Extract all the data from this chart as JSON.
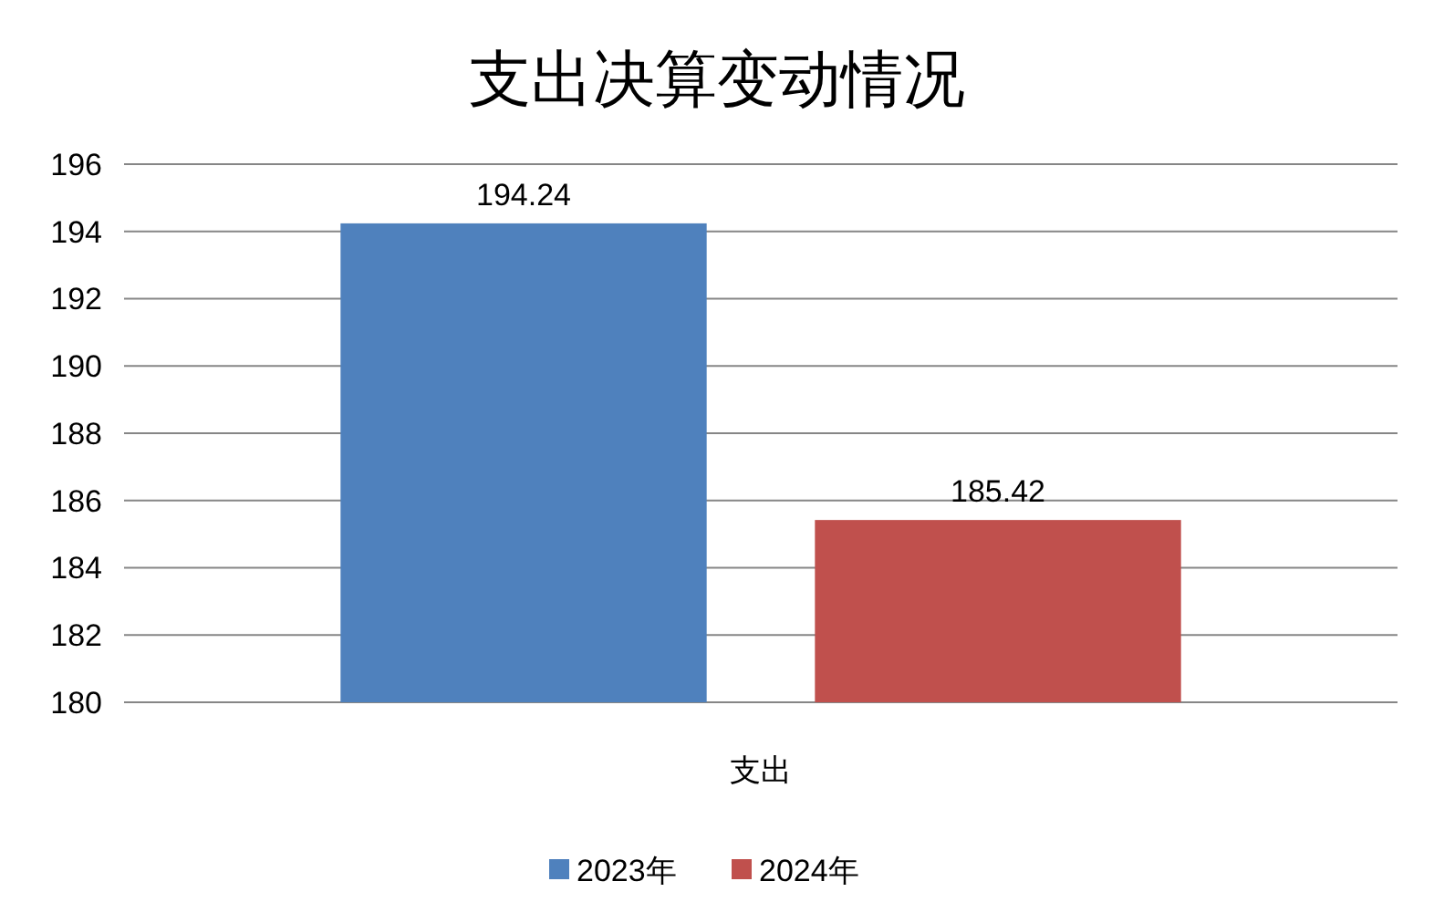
{
  "chart_data": {
    "type": "bar",
    "title": "支出决算变动情况",
    "categories": [
      "支出"
    ],
    "series": [
      {
        "name": "2023年",
        "color": "#4f81bd",
        "values": [
          194.24
        ]
      },
      {
        "name": "2024年",
        "color": "#c0504d",
        "values": [
          185.42
        ]
      }
    ],
    "ylim": [
      180,
      196
    ],
    "yticks": [
      180,
      182,
      184,
      186,
      188,
      190,
      192,
      194,
      196
    ],
    "grid": "y",
    "legend": "bottom",
    "data_labels": true
  }
}
